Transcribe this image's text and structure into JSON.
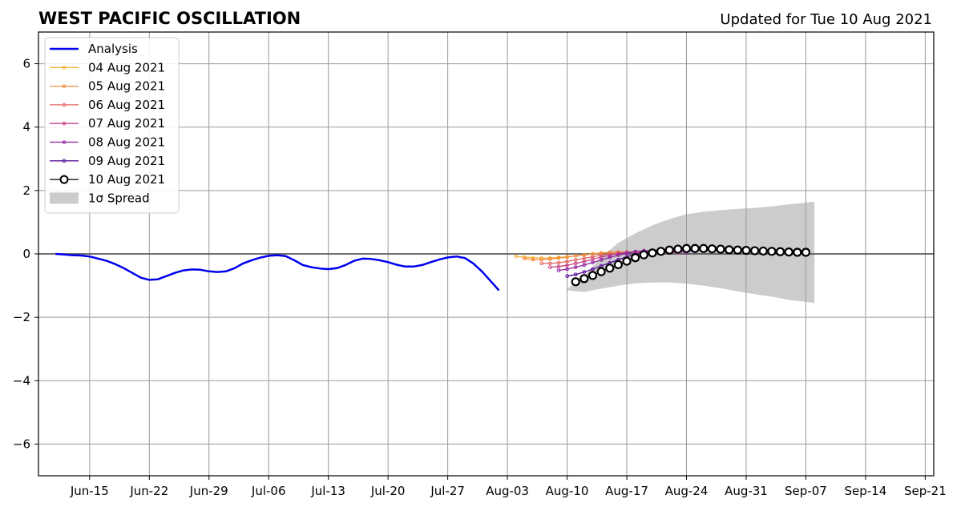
{
  "chart_data": {
    "type": "line",
    "title": "WEST PACIFIC OSCILLATION",
    "subtitle": "Updated for Tue 10 Aug 2021",
    "xlabel": "",
    "ylabel": "",
    "xlim": [
      "2021-06-09",
      "2021-09-22"
    ],
    "ylim": [
      -7,
      7
    ],
    "grid": true,
    "legend_position": "upper left",
    "x_ticks": [
      "Jun-15",
      "Jun-22",
      "Jun-29",
      "Jul-06",
      "Jul-13",
      "Jul-20",
      "Jul-27",
      "Aug-03",
      "Aug-10",
      "Aug-17",
      "Aug-24",
      "Aug-31",
      "Sep-07",
      "Sep-14",
      "Sep-21"
    ],
    "y_ticks": [
      {
        "value": 6,
        "label": "6"
      },
      {
        "value": 4,
        "label": "4"
      },
      {
        "value": 2,
        "label": "2"
      },
      {
        "value": 0,
        "label": "0"
      },
      {
        "value": -2,
        "label": "−2"
      },
      {
        "value": -4,
        "label": "−4"
      },
      {
        "value": -6,
        "label": "−6"
      }
    ],
    "colors": {
      "analysis": "#0000ee",
      "spread": "#cccccc",
      "grid": "#999999",
      "zero_line": "#444444"
    },
    "analysis": {
      "name": "Analysis",
      "x": [
        "2021-06-11",
        "2021-06-12",
        "2021-06-13",
        "2021-06-14",
        "2021-06-15",
        "2021-06-16",
        "2021-06-17",
        "2021-06-18",
        "2021-06-19",
        "2021-06-20",
        "2021-06-21",
        "2021-06-22",
        "2021-06-23",
        "2021-06-24",
        "2021-06-25",
        "2021-06-26",
        "2021-06-27",
        "2021-06-28",
        "2021-06-29",
        "2021-06-30",
        "2021-07-01",
        "2021-07-02",
        "2021-07-03",
        "2021-07-04",
        "2021-07-05",
        "2021-07-06",
        "2021-07-07",
        "2021-07-08",
        "2021-07-09",
        "2021-07-10",
        "2021-07-11",
        "2021-07-12",
        "2021-07-13",
        "2021-07-14",
        "2021-07-15",
        "2021-07-16",
        "2021-07-17",
        "2021-07-18",
        "2021-07-19",
        "2021-07-20",
        "2021-07-21",
        "2021-07-22",
        "2021-07-23",
        "2021-07-24",
        "2021-07-25",
        "2021-07-26",
        "2021-07-27",
        "2021-07-28",
        "2021-07-29",
        "2021-07-30",
        "2021-07-31",
        "2021-08-01",
        "2021-08-02",
        "2021-08-03",
        "2021-08-04",
        "2021-08-05",
        "2021-08-06",
        "2021-08-07",
        "2021-08-08",
        "2021-08-09",
        "2021-08-10"
      ],
      "y": [
        0.0,
        -0.02,
        -0.04,
        -0.05,
        -0.08,
        -0.15,
        -0.22,
        -0.32,
        -0.45,
        -0.6,
        -0.75,
        -0.82,
        -0.8,
        -0.7,
        -0.6,
        -0.52,
        -0.49,
        -0.5,
        -0.55,
        -0.57,
        -0.55,
        -0.45,
        -0.3,
        -0.2,
        -0.12,
        -0.06,
        -0.04,
        -0.07,
        -0.2,
        -0.35,
        -0.42,
        -0.46,
        -0.48,
        -0.45,
        -0.35,
        -0.22,
        -0.15,
        -0.16,
        -0.2,
        -0.26,
        -0.34,
        -0.4,
        -0.4,
        -0.35,
        -0.26,
        -0.18,
        -0.11,
        -0.08,
        -0.13,
        -0.3,
        -0.55,
        -0.85,
        -1.15,
        null,
        null,
        null,
        null,
        null,
        null,
        null,
        null
      ]
    },
    "forecasts": [
      {
        "name": "04 Aug 2021",
        "color": "#f5b53a",
        "start": "2021-08-04",
        "y": [
          -0.08,
          -0.1,
          -0.12,
          -0.13,
          -0.13,
          -0.11,
          -0.09,
          -0.06,
          -0.03,
          0.0,
          0.02,
          0.04,
          0.05,
          0.05,
          0.04,
          0.03
        ]
      },
      {
        "name": "05 Aug 2021",
        "color": "#f08a3c",
        "start": "2021-08-05",
        "y": [
          -0.15,
          -0.18,
          -0.18,
          -0.16,
          -0.13,
          -0.1,
          -0.06,
          -0.03,
          0.0,
          0.03,
          0.05,
          0.06,
          0.06,
          0.05,
          0.04,
          0.03
        ]
      },
      {
        "name": "06 Aug 2021",
        "color": "#e0645e",
        "start": "2021-08-07",
        "y": [
          -0.3,
          -0.3,
          -0.28,
          -0.24,
          -0.19,
          -0.14,
          -0.09,
          -0.04,
          0.0,
          0.03,
          0.05,
          0.06,
          0.06,
          0.05,
          0.04,
          0.03
        ]
      },
      {
        "name": "07 Aug 2021",
        "color": "#c53f88",
        "start": "2021-08-08",
        "y": [
          -0.42,
          -0.4,
          -0.36,
          -0.3,
          -0.24,
          -0.17,
          -0.1,
          -0.04,
          0.01,
          0.05,
          0.07,
          0.08,
          0.07,
          0.06,
          0.05,
          0.04
        ]
      },
      {
        "name": "08 Aug 2021",
        "color": "#9020a0",
        "start": "2021-08-09",
        "y": [
          -0.52,
          -0.48,
          -0.42,
          -0.35,
          -0.27,
          -0.19,
          -0.11,
          -0.04,
          0.02,
          0.07,
          0.1,
          0.1,
          0.09,
          0.08,
          0.07,
          0.05
        ]
      },
      {
        "name": "09 Aug 2021",
        "color": "#5a0f9a",
        "start": "2021-08-10",
        "y": [
          -0.7,
          -0.65,
          -0.57,
          -0.48,
          -0.38,
          -0.28,
          -0.18,
          -0.09,
          -0.01,
          0.06,
          0.11,
          0.13,
          0.13,
          0.12,
          0.1,
          0.08
        ]
      }
    ],
    "current_forecast": {
      "name": "10 Aug 2021",
      "color": "#000000",
      "start": "2021-08-11",
      "y": [
        -0.88,
        -0.78,
        -0.68,
        -0.56,
        -0.45,
        -0.34,
        -0.23,
        -0.12,
        -0.03,
        0.03,
        0.08,
        0.12,
        0.15,
        0.17,
        0.17,
        0.17,
        0.16,
        0.15,
        0.13,
        0.12,
        0.11,
        0.1,
        0.09,
        0.08,
        0.07,
        0.06,
        0.05,
        0.05
      ]
    },
    "spread": {
      "name": "1σ Spread",
      "x": [
        "2021-08-10",
        "2021-08-12",
        "2021-08-14",
        "2021-08-16",
        "2021-08-18",
        "2021-08-20",
        "2021-08-22",
        "2021-08-24",
        "2021-08-26",
        "2021-08-28",
        "2021-08-30",
        "2021-09-01",
        "2021-09-03",
        "2021-09-05",
        "2021-09-08"
      ],
      "upper": [
        -1.1,
        -0.7,
        -0.1,
        0.35,
        0.65,
        0.9,
        1.1,
        1.25,
        1.33,
        1.38,
        1.42,
        1.45,
        1.5,
        1.56,
        1.65
      ],
      "lower": [
        -1.15,
        -1.2,
        -1.1,
        -1.0,
        -0.93,
        -0.9,
        -0.9,
        -0.94,
        -1.0,
        -1.08,
        -1.18,
        -1.27,
        -1.35,
        -1.45,
        -1.55
      ]
    }
  }
}
